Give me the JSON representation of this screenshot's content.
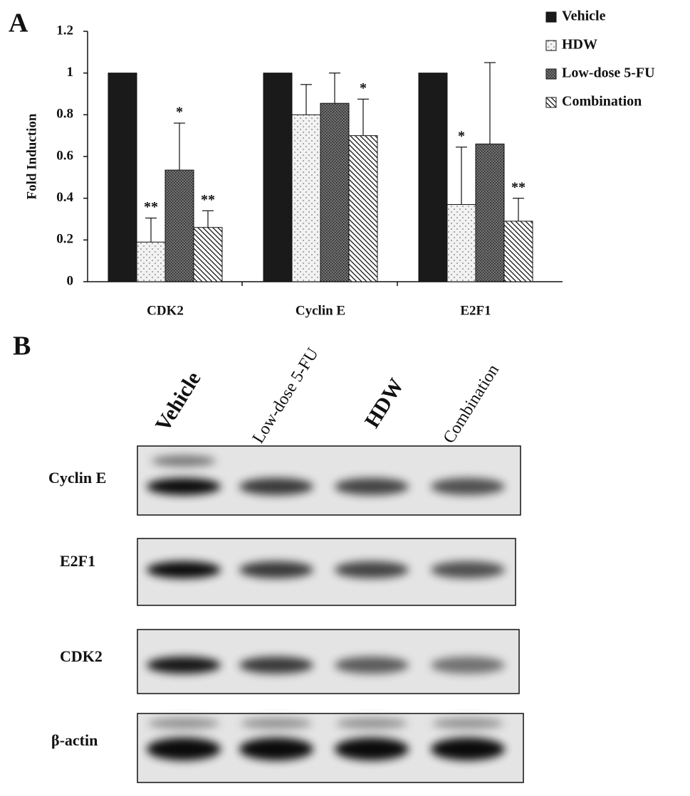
{
  "chart_data": {
    "type": "bar",
    "panel_label": "A",
    "y_label": "Fold Induction",
    "categories": [
      "CDK2",
      "Cyclin E",
      "E2F1"
    ],
    "series": [
      {
        "name": "Vehicle",
        "color": "#1a1a1a",
        "pattern": "solid",
        "values": [
          1,
          1,
          1
        ]
      },
      {
        "name": "HDW",
        "color": "#f2f2f2",
        "pattern": "dots",
        "values": [
          0.19,
          0.8,
          0.37
        ],
        "errors": [
          0.115,
          0.145,
          0.275
        ],
        "significance": [
          "**",
          null,
          "*"
        ]
      },
      {
        "name": "Low-dose 5-FU",
        "color": "#707070",
        "pattern": "dense",
        "values": [
          0.535,
          0.855,
          0.66
        ],
        "errors": [
          0.225,
          0.145,
          0.39
        ],
        "significance": [
          "*",
          null,
          null
        ]
      },
      {
        "name": "Combination",
        "color": "#ffffff",
        "pattern": "hatch",
        "values": [
          0.26,
          0.7,
          0.29
        ],
        "errors": [
          0.08,
          0.175,
          0.11
        ],
        "significance": [
          "**",
          "*",
          "**"
        ]
      }
    ],
    "ylim": [
      0,
      1.2
    ],
    "yticks": [
      0,
      0.2,
      0.4,
      0.6,
      0.8,
      1,
      1.2
    ],
    "legend": "top-right"
  },
  "blot": {
    "panel_label": "B",
    "lanes": [
      "Vehicle",
      "Low-dose 5-FU",
      "HDW",
      "Combination"
    ],
    "rows": [
      "Cyclin E",
      "E2F1",
      "CDK2",
      "β-actin"
    ]
  }
}
